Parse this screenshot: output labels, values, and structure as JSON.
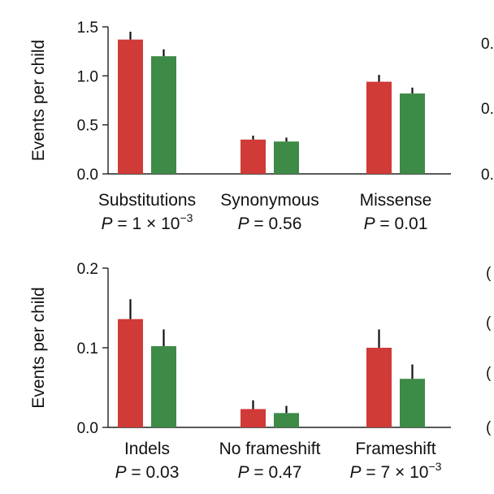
{
  "chart_data": [
    {
      "type": "bar",
      "title": "",
      "xlabel": "",
      "ylabel": "Events per child",
      "ylim": [
        0,
        1.5
      ],
      "yticks": [
        "0.0",
        "0.5",
        "1.0",
        "1.5"
      ],
      "ytick_values": [
        0,
        0.5,
        1.0,
        1.5
      ],
      "categories": [
        "Substitutions",
        "Synonymous",
        "Missense"
      ],
      "pvalues": [
        {
          "prefix": "P",
          "eq": " = 1 × 10",
          "sup": "−3"
        },
        {
          "prefix": "P",
          "eq": " = 0.56",
          "sup": ""
        },
        {
          "prefix": "P",
          "eq": " = 0.01",
          "sup": ""
        }
      ],
      "series": [
        {
          "color": "#d03a37",
          "values": [
            1.37,
            0.35,
            0.94
          ],
          "errors": [
            0.08,
            0.04,
            0.07
          ]
        },
        {
          "color": "#3e8a47",
          "values": [
            1.2,
            0.33,
            0.82
          ],
          "errors": [
            0.07,
            0.04,
            0.06
          ]
        }
      ],
      "grid": false
    },
    {
      "type": "bar",
      "title": "",
      "xlabel": "",
      "ylabel": "Events per child",
      "ylim": [
        0,
        0.2
      ],
      "yticks": [
        "0.0",
        "0.1",
        "0.2"
      ],
      "ytick_values": [
        0,
        0.1,
        0.2
      ],
      "categories": [
        "Indels",
        "No frameshift",
        "Frameshift"
      ],
      "pvalues": [
        {
          "prefix": "P",
          "eq": " = 0.03",
          "sup": ""
        },
        {
          "prefix": "P",
          "eq": " = 0.47",
          "sup": ""
        },
        {
          "prefix": "P",
          "eq": " = 7 × 10",
          "sup": "−3"
        }
      ],
      "series": [
        {
          "color": "#d03a37",
          "values": [
            0.136,
            0.023,
            0.1
          ],
          "errors": [
            0.025,
            0.011,
            0.023
          ]
        },
        {
          "color": "#3e8a47",
          "values": [
            0.102,
            0.018,
            0.061
          ],
          "errors": [
            0.021,
            0.009,
            0.018
          ]
        }
      ],
      "grid": false
    }
  ],
  "edge_labels": [
    "0.",
    "0.",
    "0.",
    "(",
    "(",
    "(",
    "("
  ]
}
